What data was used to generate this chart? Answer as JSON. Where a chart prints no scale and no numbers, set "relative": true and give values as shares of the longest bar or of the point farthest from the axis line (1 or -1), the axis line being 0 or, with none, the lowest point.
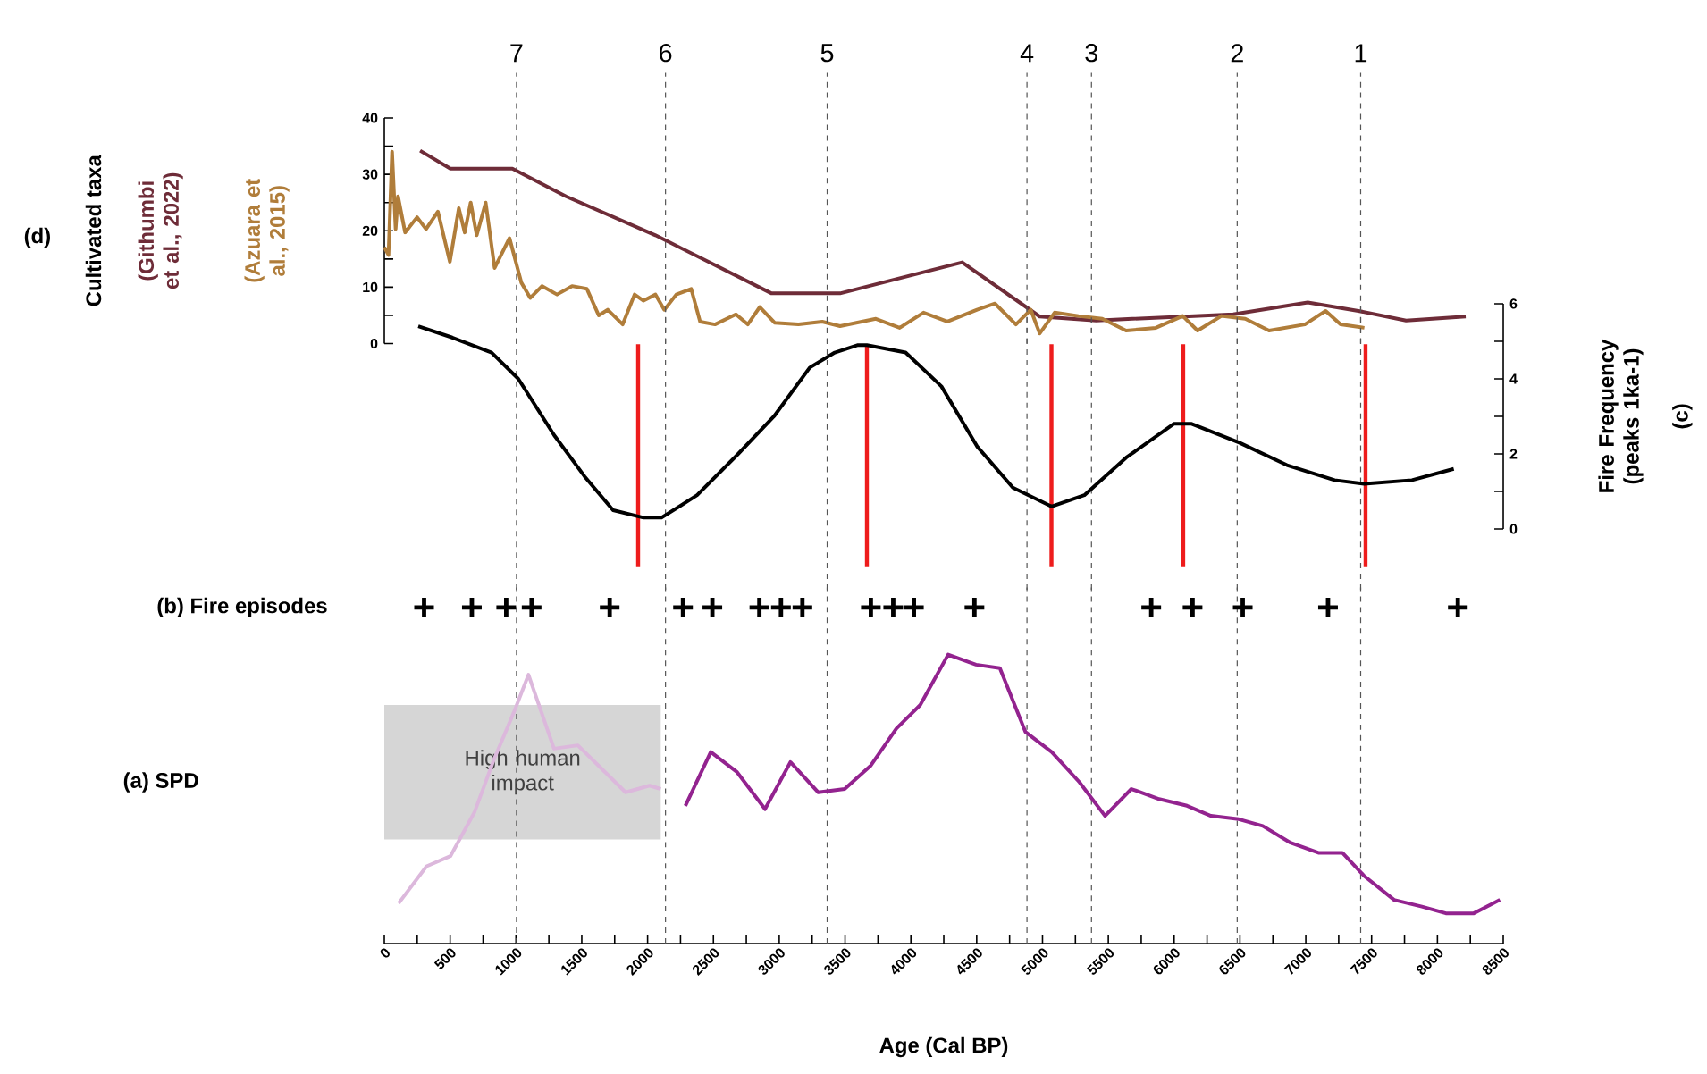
{
  "chart_data": [
    {
      "type": "line",
      "ylabel": "Cultivated taxa",
      "annotations": [
        "(d)",
        "7",
        "6",
        "5",
        "4",
        "3",
        "2",
        "1"
      ],
      "xlim": [
        0,
        8500
      ],
      "ylim": [
        0,
        40
      ],
      "yticks": [
        0,
        {
          "value": 5,
          "label": null
        },
        10,
        {
          "value": 15,
          "label": null
        },
        20,
        {
          "value": 25,
          "label": null
        },
        30,
        {
          "value": 35,
          "label": null
        },
        40
      ],
      "tick_labels": "y",
      "series": [
        {
          "name": "(Githumbi et al., 2022)",
          "color": "#6e2c38",
          "x": [
            272,
            502,
            973,
            1380,
            2060,
            2942,
            3462,
            4390,
            4979,
            5408,
            6449,
            7015,
            7400,
            7762,
            8215
          ],
          "values": [
            34.2,
            31.0,
            31.0,
            26.1,
            19.2,
            8.9,
            8.9,
            14.4,
            4.8,
            4.1,
            5.2,
            7.3,
            5.8,
            4.1,
            4.8
          ]
        },
        {
          "name": "(Azuara et al., 2015)",
          "color": "#b07d3a",
          "x": [
            0,
            32,
            59,
            86,
            104,
            158,
            249,
            317,
            407,
            498,
            566,
            611,
            656,
            702,
            770,
            838,
            951,
            1041,
            1109,
            1199,
            1312,
            1426,
            1539,
            1629,
            1697,
            1811,
            1901,
            1969,
            2060,
            2127,
            2218,
            2331,
            2399,
            2512,
            2671,
            2761,
            2852,
            2965,
            3146,
            3327,
            3462,
            3734,
            3915,
            4096,
            4277,
            4503,
            4639,
            4798,
            4911,
            4979,
            5092,
            5273,
            5454,
            5635,
            5861,
            6065,
            6178,
            6359,
            6540,
            6721,
            6993,
            7151,
            7264,
            7445
          ],
          "values": [
            17.1,
            15.7,
            34.0,
            20.3,
            26.1,
            19.7,
            22.4,
            20.3,
            23.4,
            14.5,
            24.0,
            19.7,
            25.0,
            19.2,
            25.0,
            13.4,
            18.7,
            10.8,
            8.1,
            10.2,
            8.7,
            10.2,
            9.7,
            5.0,
            6.0,
            3.4,
            8.7,
            7.6,
            8.7,
            6.0,
            8.7,
            9.7,
            3.9,
            3.4,
            5.2,
            3.4,
            6.5,
            3.7,
            3.4,
            3.9,
            3.1,
            4.4,
            2.8,
            5.5,
            3.9,
            6.0,
            7.1,
            3.4,
            6.0,
            1.8,
            5.5,
            4.9,
            4.4,
            2.3,
            2.8,
            4.9,
            2.3,
            4.9,
            4.4,
            2.3,
            3.4,
            5.8,
            3.4,
            2.8
          ]
        }
      ],
      "ref_lines": [
        {
          "axis": "x",
          "value": 1004,
          "color": "#555555",
          "line_style": "dashed"
        },
        {
          "axis": "x",
          "value": 2136,
          "color": "#555555",
          "line_style": "dashed"
        },
        {
          "axis": "x",
          "value": 3364,
          "color": "#555555",
          "line_style": "dashed"
        },
        {
          "axis": "x",
          "value": 4882,
          "color": "#555555",
          "line_style": "dashed"
        },
        {
          "axis": "x",
          "value": 5372,
          "color": "#555555",
          "line_style": "dashed"
        },
        {
          "axis": "x",
          "value": 6479,
          "color": "#555555",
          "line_style": "dashed"
        },
        {
          "axis": "x",
          "value": 7417,
          "color": "#555555",
          "line_style": "dashed"
        }
      ]
    },
    {
      "type": "line",
      "ylabel": "Fire Frequency (peaks 1ka-1)",
      "annotations": [
        "(c)"
      ],
      "xlim": [
        0,
        8500
      ],
      "ylim": [
        0,
        6
      ],
      "yticks": [
        0,
        {
          "value": 1,
          "label": null
        },
        2,
        {
          "value": 3,
          "label": null
        },
        4,
        {
          "value": 5,
          "label": null
        },
        6
      ],
      "tick_labels": "y",
      "series": [
        {
          "color": "#000000",
          "x": [
            258,
            516,
            815,
            1018,
            1290,
            1521,
            1738,
            1969,
            2105,
            2376,
            2688,
            2960,
            3232,
            3422,
            3598,
            3666,
            3960,
            4232,
            4503,
            4775,
            5068,
            5318,
            5635,
            5997,
            6133,
            6495,
            6857,
            7219,
            7445,
            7807,
            8124
          ],
          "values": [
            5.4,
            5.1,
            4.7,
            4.0,
            2.5,
            1.4,
            0.5,
            0.3,
            0.3,
            0.9,
            2.0,
            3.0,
            4.3,
            4.7,
            4.9,
            4.9,
            4.7,
            3.8,
            2.2,
            1.1,
            0.6,
            0.9,
            1.9,
            2.8,
            2.8,
            2.3,
            1.7,
            1.3,
            1.2,
            1.3,
            1.6
          ]
        }
      ],
      "ref_lines": [
        {
          "axis": "x",
          "value": 1004,
          "color": "#555555",
          "line_style": "dashed"
        },
        {
          "axis": "x",
          "value": 2136,
          "color": "#555555",
          "line_style": "dashed"
        },
        {
          "axis": "x",
          "value": 3364,
          "color": "#555555",
          "line_style": "dashed"
        },
        {
          "axis": "x",
          "value": 4882,
          "color": "#555555",
          "line_style": "dashed"
        },
        {
          "axis": "x",
          "value": 5372,
          "color": "#555555",
          "line_style": "dashed"
        },
        {
          "axis": "x",
          "value": 6479,
          "color": "#555555",
          "line_style": "dashed"
        },
        {
          "axis": "x",
          "value": 7417,
          "color": "#555555",
          "line_style": "dashed"
        },
        {
          "axis": "x",
          "value": 1928,
          "color": "#ee1c1c",
          "line_style": "solid"
        },
        {
          "axis": "x",
          "value": 3666,
          "color": "#ee1c1c",
          "line_style": "solid"
        },
        {
          "axis": "x",
          "value": 5068,
          "color": "#ee1c1c",
          "line_style": "solid"
        },
        {
          "axis": "x",
          "value": 6069,
          "color": "#ee1c1c",
          "line_style": "solid"
        },
        {
          "axis": "x",
          "value": 7454,
          "color": "#ee1c1c",
          "line_style": "solid"
        }
      ]
    },
    {
      "type": "line",
      "ylabel": "(a) SPD",
      "xlabel": "Age (Cal BP)",
      "relative": true,
      "xlim": [
        0,
        8500
      ],
      "tick_labels": "x",
      "xticks": [
        0,
        {
          "value": 250,
          "label": null
        },
        500,
        {
          "value": 750,
          "label": null
        },
        1000,
        {
          "value": 1250,
          "label": null
        },
        1500,
        {
          "value": 1750,
          "label": null
        },
        2000,
        {
          "value": 2250,
          "label": null
        },
        2500,
        {
          "value": 2750,
          "label": null
        },
        3000,
        {
          "value": 3250,
          "label": null
        },
        3500,
        {
          "value": 3750,
          "label": null
        },
        4000,
        {
          "value": 4250,
          "label": null
        },
        4500,
        {
          "value": 4750,
          "label": null
        },
        5000,
        {
          "value": 5250,
          "label": null
        },
        5500,
        {
          "value": 5750,
          "label": null
        },
        6000,
        {
          "value": 6250,
          "label": null
        },
        6500,
        {
          "value": 6750,
          "label": null
        },
        7000,
        {
          "value": 7250,
          "label": null
        },
        7500,
        {
          "value": 7750,
          "label": null
        },
        8000,
        {
          "value": 8250,
          "label": null
        },
        8500
      ],
      "series": [
        {
          "color": "#dcb8dc",
          "x": [
            109,
            321,
            502,
            684,
            835,
            986,
            1095,
            1289,
            1470,
            1652,
            1833,
            2015,
            2100
          ],
          "values": [
            0.12,
            0.23,
            0.26,
            0.39,
            0.55,
            0.69,
            0.8,
            0.58,
            0.59,
            0.52,
            0.45,
            0.47,
            0.46
          ]
        },
        {
          "color": "#93238f",
          "x": [
            2287,
            2480,
            2680,
            2892,
            3085,
            3297,
            3497,
            3696,
            3890,
            4071,
            4283,
            4495,
            4676,
            4870,
            5070,
            5281,
            5475,
            5675,
            5886,
            6098,
            6279,
            6491,
            6673,
            6884,
            7096,
            7278,
            7447,
            7671,
            7882,
            8064,
            8276,
            8475
          ],
          "values": [
            0.41,
            0.57,
            0.51,
            0.4,
            0.54,
            0.45,
            0.46,
            0.53,
            0.64,
            0.71,
            0.86,
            0.83,
            0.82,
            0.63,
            0.57,
            0.48,
            0.38,
            0.46,
            0.43,
            0.41,
            0.38,
            0.37,
            0.35,
            0.3,
            0.27,
            0.27,
            0.2,
            0.13,
            0.11,
            0.09,
            0.09,
            0.13
          ]
        },
        {
          "name": "(b) Fire episodes",
          "type": "scatter",
          "marker": "cross",
          "color": "#000000",
          "x": [
            302,
            665,
            926,
            1119,
            1712,
            2269,
            2492,
            2849,
            3013,
            3176,
            3696,
            3866,
            4023,
            4483,
            5826,
            6140,
            6521,
            7169,
            8155
          ],
          "values": [
            1,
            1,
            1,
            1,
            1,
            1,
            1,
            1,
            1,
            1,
            1,
            1,
            1,
            1,
            1,
            1,
            1,
            1,
            1
          ]
        }
      ],
      "bands": [
        {
          "axis": "x",
          "from": 0,
          "to": 2100,
          "label": "High human impact",
          "color": "#d6d6d6"
        }
      ],
      "ref_lines": [
        {
          "axis": "x",
          "value": 1004,
          "color": "#555555",
          "line_style": "dashed"
        },
        {
          "axis": "x",
          "value": 2136,
          "color": "#555555",
          "line_style": "dashed"
        },
        {
          "axis": "x",
          "value": 3364,
          "color": "#555555",
          "line_style": "dashed"
        },
        {
          "axis": "x",
          "value": 4882,
          "color": "#555555",
          "line_style": "dashed"
        },
        {
          "axis": "x",
          "value": 5372,
          "color": "#555555",
          "line_style": "dashed"
        },
        {
          "axis": "x",
          "value": 6479,
          "color": "#555555",
          "line_style": "dashed"
        },
        {
          "axis": "x",
          "value": 7417,
          "color": "#555555",
          "line_style": "dashed"
        }
      ]
    }
  ]
}
